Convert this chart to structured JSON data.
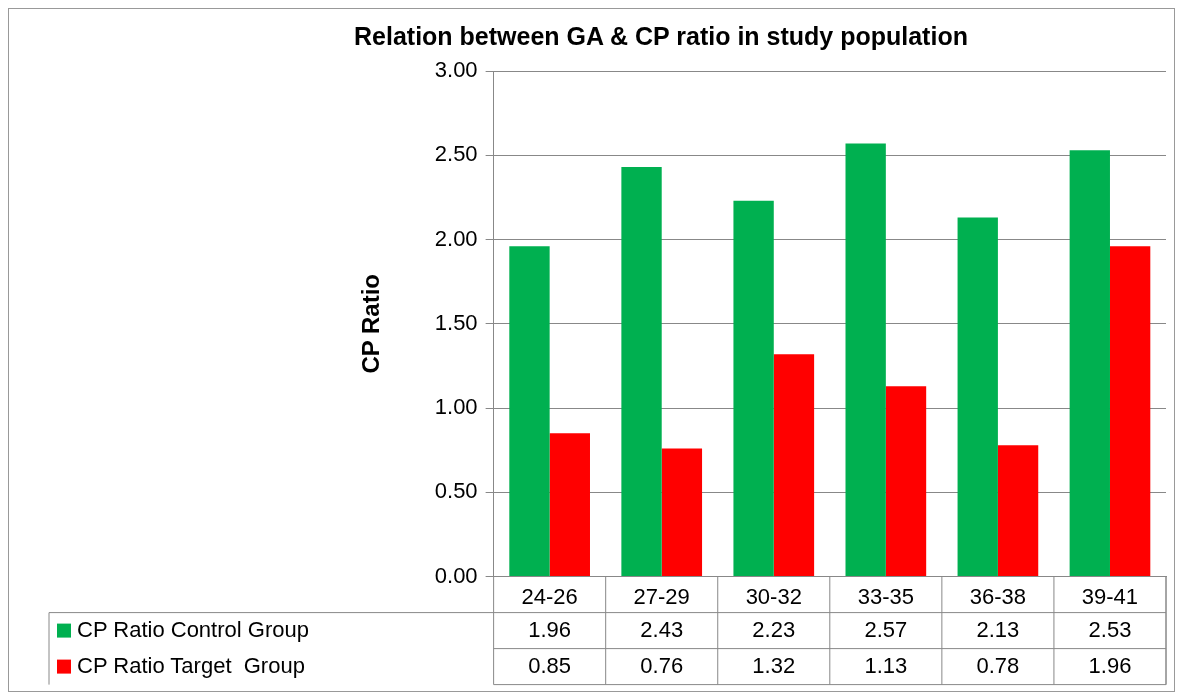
{
  "chart_data": {
    "type": "bar",
    "title": "Relation between GA & CP ratio in study population",
    "ylabel": "CP Ratio",
    "categories": [
      "24-26",
      "27-29",
      "30-32",
      "33-35",
      "36-38",
      "39-41"
    ],
    "series": [
      {
        "name": "CP Ratio Control Group",
        "color": "#00b050",
        "values": [
          1.96,
          2.43,
          2.23,
          2.57,
          2.13,
          2.53
        ]
      },
      {
        "name": "CP Ratio Target  Group",
        "color": "#ff0000",
        "values": [
          0.85,
          0.76,
          1.32,
          1.13,
          0.78,
          1.96
        ]
      }
    ],
    "ylim": [
      0,
      3
    ],
    "yticks": [
      {
        "value": 0,
        "label": "0.00"
      },
      {
        "value": 0.5,
        "label": "0.50"
      },
      {
        "value": 1,
        "label": "1.00"
      },
      {
        "value": 1.5,
        "label": "1.50"
      },
      {
        "value": 2,
        "label": "2.00"
      },
      {
        "value": 2.5,
        "label": "2.50"
      },
      {
        "value": 3,
        "label": "3.00"
      }
    ],
    "grid": "y",
    "legend": "bottom",
    "data_labels": true
  }
}
